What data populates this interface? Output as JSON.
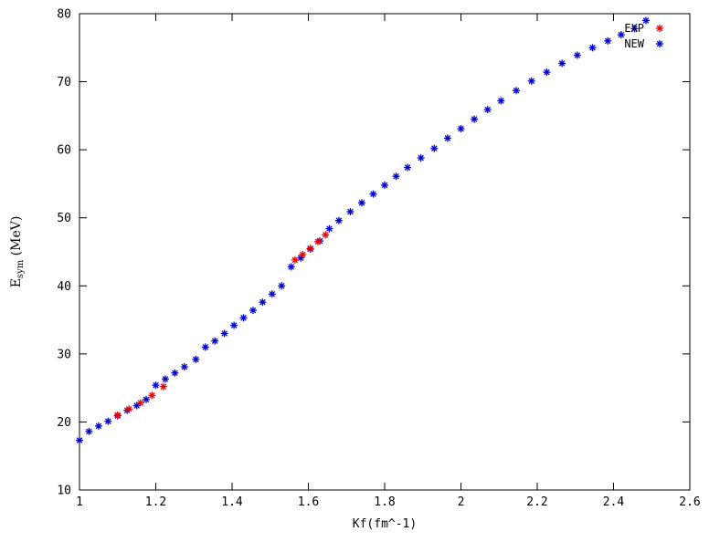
{
  "figure": {
    "background": "#ffffff",
    "axis_color": "#000000",
    "text_color": "#000000"
  },
  "chart_data": {
    "type": "scatter",
    "marker": "asterisk",
    "title": "",
    "xlabel": "Kf(fm^-1)",
    "ylabel": {
      "base": "E",
      "sub": "sym",
      "rest": " (MeV)"
    },
    "xlim": [
      1,
      2.6
    ],
    "ylim": [
      10,
      80
    ],
    "grid": false,
    "x_ticks": {
      "values": [
        1,
        1.2,
        1.4,
        1.6,
        1.8,
        2,
        2.2,
        2.4,
        2.6
      ],
      "labels": [
        "1",
        "1.2",
        "1.4",
        "1.6",
        "1.8",
        "2",
        "2.2",
        "2.4",
        "2.6"
      ]
    },
    "y_ticks": {
      "values": [
        10,
        20,
        30,
        40,
        50,
        60,
        70,
        80
      ],
      "labels": [
        "10",
        "20",
        "30",
        "40",
        "50",
        "60",
        "70",
        "80"
      ]
    },
    "legend": {
      "position": "top-right"
    },
    "series": [
      {
        "name": "EXP",
        "color": "#ee0000",
        "points": [
          [
            1.1,
            21.0
          ],
          [
            1.13,
            21.9
          ],
          [
            1.16,
            22.8
          ],
          [
            1.19,
            23.9
          ],
          [
            1.22,
            25.2
          ],
          [
            1.565,
            43.8
          ],
          [
            1.585,
            44.6
          ],
          [
            1.605,
            45.5
          ],
          [
            1.625,
            46.5
          ],
          [
            1.645,
            47.5
          ]
        ]
      },
      {
        "name": "NEW",
        "color": "#0000cd",
        "points": [
          [
            1.0,
            17.3
          ],
          [
            1.025,
            18.6
          ],
          [
            1.05,
            19.4
          ],
          [
            1.075,
            20.1
          ],
          [
            1.1,
            20.9
          ],
          [
            1.125,
            21.7
          ],
          [
            1.15,
            22.4
          ],
          [
            1.175,
            23.3
          ],
          [
            1.2,
            25.4
          ],
          [
            1.225,
            26.3
          ],
          [
            1.25,
            27.2
          ],
          [
            1.275,
            28.1
          ],
          [
            1.305,
            29.2
          ],
          [
            1.33,
            31.0
          ],
          [
            1.355,
            31.9
          ],
          [
            1.38,
            33.0
          ],
          [
            1.405,
            34.2
          ],
          [
            1.43,
            35.3
          ],
          [
            1.455,
            36.4
          ],
          [
            1.48,
            37.6
          ],
          [
            1.505,
            38.8
          ],
          [
            1.53,
            40.0
          ],
          [
            1.555,
            42.8
          ],
          [
            1.58,
            44.1
          ],
          [
            1.605,
            45.4
          ],
          [
            1.63,
            46.6
          ],
          [
            1.655,
            48.4
          ],
          [
            1.68,
            49.6
          ],
          [
            1.71,
            50.9
          ],
          [
            1.74,
            52.2
          ],
          [
            1.77,
            53.5
          ],
          [
            1.8,
            54.8
          ],
          [
            1.83,
            56.1
          ],
          [
            1.86,
            57.4
          ],
          [
            1.895,
            58.8
          ],
          [
            1.93,
            60.2
          ],
          [
            1.965,
            61.7
          ],
          [
            2.0,
            63.1
          ],
          [
            2.035,
            64.5
          ],
          [
            2.07,
            65.9
          ],
          [
            2.105,
            67.2
          ],
          [
            2.145,
            68.7
          ],
          [
            2.185,
            70.1
          ],
          [
            2.225,
            71.4
          ],
          [
            2.265,
            72.7
          ],
          [
            2.305,
            73.9
          ],
          [
            2.345,
            75.0
          ],
          [
            2.385,
            76.0
          ],
          [
            2.42,
            76.9
          ],
          [
            2.455,
            77.8
          ],
          [
            2.485,
            79.0
          ]
        ]
      }
    ]
  }
}
